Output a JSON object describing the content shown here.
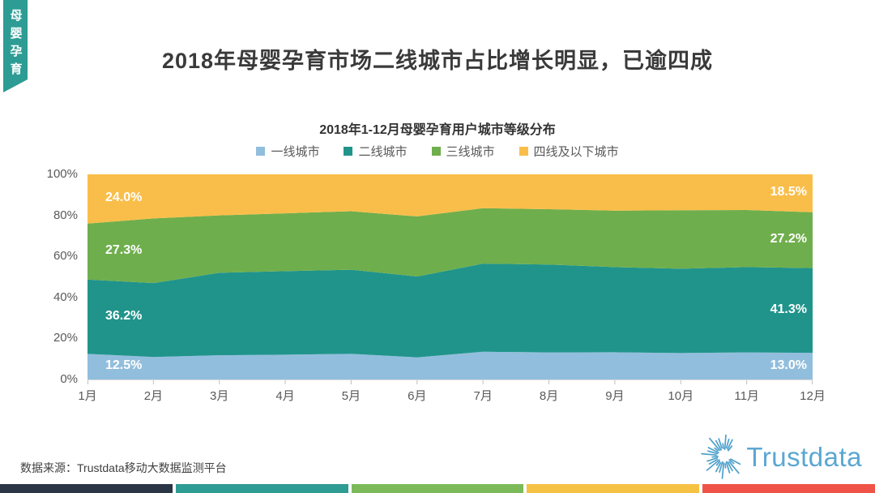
{
  "sidebar_tab": {
    "label": "母婴孕育",
    "color": "#2d9c94"
  },
  "title": "2018年母婴孕育市场二线城市占比增长明显，已逾四成",
  "source_note": "数据来源：Trustdata移动大数据监测平台",
  "logo": {
    "text": "Trustdata",
    "icon": "sunburst-icon",
    "ray_color": "#4da0cb",
    "text_color": "#5ba7d2"
  },
  "footer_stripes": [
    "#2a3546",
    "#2f9c94",
    "#7cba59",
    "#f6c244",
    "#ef5347"
  ],
  "chart_data": {
    "type": "area",
    "stacked": true,
    "title": "2018年1-12月母婴孕育用户城市等级分布",
    "categories": [
      "1月",
      "2月",
      "3月",
      "4月",
      "5月",
      "6月",
      "7月",
      "8月",
      "9月",
      "10月",
      "11月",
      "12月"
    ],
    "series": [
      {
        "name": "一线城市",
        "color": "#92bedd",
        "values": [
          12.5,
          11.0,
          11.8,
          12.1,
          12.5,
          10.8,
          13.5,
          13.2,
          13.3,
          12.9,
          13.2,
          13.0
        ]
      },
      {
        "name": "二线城市",
        "color": "#20948b",
        "values": [
          36.2,
          36.0,
          40.2,
          40.7,
          41.0,
          39.4,
          43.0,
          42.8,
          41.5,
          41.1,
          41.6,
          41.3
        ]
      },
      {
        "name": "三线城市",
        "color": "#6fae4c",
        "values": [
          27.3,
          31.5,
          28.0,
          28.2,
          28.5,
          29.3,
          27.0,
          27.0,
          27.5,
          28.5,
          27.8,
          27.2
        ]
      },
      {
        "name": "四线及以下城市",
        "color": "#f9be4a",
        "values": [
          24.0,
          21.5,
          20.0,
          19.0,
          18.0,
          20.5,
          16.5,
          17.0,
          17.7,
          17.5,
          17.4,
          18.5
        ]
      }
    ],
    "ylim": [
      0,
      100
    ],
    "yticks": [
      "100%",
      "80%",
      "60%",
      "40%",
      "20%",
      "0%"
    ],
    "xlabel": "",
    "ylabel": "",
    "grid": false,
    "legend_position": "top",
    "annotations": [
      {
        "text": "12.5%",
        "series": 0,
        "month": 0,
        "side": "left"
      },
      {
        "text": "36.2%",
        "series": 1,
        "month": 0,
        "side": "left"
      },
      {
        "text": "27.3%",
        "series": 2,
        "month": 0,
        "side": "left"
      },
      {
        "text": "24.0%",
        "series": 3,
        "month": 0,
        "side": "left"
      },
      {
        "text": "13.0%",
        "series": 0,
        "month": 11,
        "side": "right"
      },
      {
        "text": "41.3%",
        "series": 1,
        "month": 11,
        "side": "right"
      },
      {
        "text": "27.2%",
        "series": 2,
        "month": 11,
        "side": "right"
      },
      {
        "text": "18.5%",
        "series": 3,
        "month": 11,
        "side": "right"
      }
    ],
    "axis_line_color": "#d9d9d9",
    "tick_color": "#bfbfbf"
  }
}
